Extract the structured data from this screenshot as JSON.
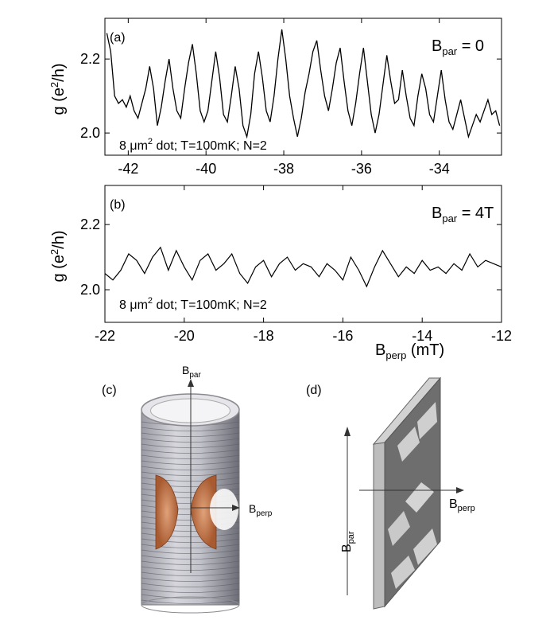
{
  "chart_data": [
    {
      "type": "line",
      "panel_label": "(a)",
      "annotation": "8 μm² dot; T=100mK; N=2",
      "annotation_parts": [
        "8 μm",
        "2",
        " dot; T=100mK; N=2"
      ],
      "condition_parts": [
        "B",
        "par",
        " = 0"
      ],
      "ylabel_parts": [
        "g (e",
        "2",
        "/h)"
      ],
      "xlabel": "",
      "xlim": [
        -42.6,
        -32.4
      ],
      "ylim": [
        1.94,
        2.31
      ],
      "xticks": [
        -42,
        -40,
        -38,
        -36,
        -34
      ],
      "yticks": [
        2.0,
        2.2
      ],
      "xtick_labels": [
        "-42",
        "-40",
        "-38",
        "-36",
        "-34"
      ],
      "ytick_labels": [
        "2.0",
        "2.2"
      ],
      "series": [
        {
          "x": [
            -42.55,
            -42.45,
            -42.35,
            -42.25,
            -42.15,
            -42.05,
            -41.95,
            -41.85,
            -41.75,
            -41.65,
            -41.55,
            -41.45,
            -41.35,
            -41.25,
            -41.15,
            -41.05,
            -40.95,
            -40.85,
            -40.75,
            -40.65,
            -40.55,
            -40.45,
            -40.35,
            -40.25,
            -40.15,
            -40.05,
            -39.95,
            -39.85,
            -39.75,
            -39.65,
            -39.55,
            -39.45,
            -39.35,
            -39.25,
            -39.15,
            -39.05,
            -38.95,
            -38.85,
            -38.75,
            -38.65,
            -38.55,
            -38.45,
            -38.35,
            -38.25,
            -38.15,
            -38.05,
            -37.95,
            -37.85,
            -37.75,
            -37.65,
            -37.55,
            -37.45,
            -37.35,
            -37.25,
            -37.15,
            -37.05,
            -36.95,
            -36.85,
            -36.75,
            -36.65,
            -36.55,
            -36.45,
            -36.35,
            -36.25,
            -36.15,
            -36.05,
            -35.95,
            -35.85,
            -35.75,
            -35.65,
            -35.55,
            -35.45,
            -35.35,
            -35.25,
            -35.15,
            -35.05,
            -34.95,
            -34.85,
            -34.75,
            -34.65,
            -34.55,
            -34.45,
            -34.35,
            -34.25,
            -34.15,
            -34.05,
            -33.95,
            -33.85,
            -33.75,
            -33.65,
            -33.55,
            -33.45,
            -33.35,
            -33.25,
            -33.15,
            -33.05,
            -32.95,
            -32.85,
            -32.75,
            -32.65,
            -32.55,
            -32.45
          ],
          "y": [
            2.27,
            2.22,
            2.1,
            2.08,
            2.09,
            2.07,
            2.1,
            2.06,
            2.04,
            2.08,
            2.12,
            2.18,
            2.12,
            2.02,
            2.07,
            2.14,
            2.2,
            2.12,
            2.06,
            2.04,
            2.12,
            2.19,
            2.24,
            2.16,
            2.06,
            2.03,
            2.06,
            2.14,
            2.22,
            2.15,
            2.05,
            2.03,
            2.1,
            2.18,
            2.12,
            2.02,
            1.99,
            2.05,
            2.16,
            2.22,
            2.15,
            2.06,
            2.03,
            2.1,
            2.2,
            2.28,
            2.2,
            2.1,
            2.04,
            1.99,
            2.04,
            2.11,
            2.16,
            2.22,
            2.25,
            2.17,
            2.1,
            2.06,
            2.12,
            2.19,
            2.23,
            2.14,
            2.06,
            2.02,
            2.08,
            2.16,
            2.23,
            2.14,
            2.05,
            2.0,
            2.05,
            2.13,
            2.21,
            2.14,
            2.08,
            2.09,
            2.17,
            2.1,
            2.04,
            2.02,
            2.1,
            2.16,
            2.12,
            2.05,
            2.03,
            2.1,
            2.17,
            2.09,
            2.03,
            2.01,
            2.05,
            2.09,
            2.04,
            1.99,
            2.02,
            2.05,
            2.03,
            2.06,
            2.09,
            2.05,
            2.06,
            2.02
          ]
        }
      ]
    },
    {
      "type": "line",
      "panel_label": "(b)",
      "annotation": "8 μm² dot; T=100mK; N=2",
      "annotation_parts": [
        "8 μm",
        "2",
        " dot; T=100mK; N=2"
      ],
      "condition_parts": [
        "B",
        "par",
        " = 4T"
      ],
      "ylabel_parts": [
        "g (e",
        "2",
        "/h)"
      ],
      "xlabel_parts": [
        "B",
        "perp",
        " (mT)"
      ],
      "xlim": [
        -22,
        -12
      ],
      "ylim": [
        1.9,
        2.32
      ],
      "xticks": [
        -22,
        -20,
        -18,
        -16,
        -14,
        -12
      ],
      "yticks": [
        2.0,
        2.2
      ],
      "xtick_labels": [
        "-22",
        "-20",
        "-18",
        "-16",
        "-14",
        "-12"
      ],
      "ytick_labels": [
        "2.0",
        "2.2"
      ],
      "series": [
        {
          "x": [
            -22.0,
            -21.8,
            -21.6,
            -21.4,
            -21.2,
            -21.0,
            -20.8,
            -20.6,
            -20.4,
            -20.2,
            -20.0,
            -19.8,
            -19.6,
            -19.4,
            -19.2,
            -19.0,
            -18.8,
            -18.6,
            -18.4,
            -18.2,
            -18.0,
            -17.8,
            -17.6,
            -17.4,
            -17.2,
            -17.0,
            -16.8,
            -16.6,
            -16.4,
            -16.2,
            -16.0,
            -15.8,
            -15.6,
            -15.4,
            -15.2,
            -15.0,
            -14.8,
            -14.6,
            -14.4,
            -14.2,
            -14.0,
            -13.8,
            -13.6,
            -13.4,
            -13.2,
            -13.0,
            -12.8,
            -12.6,
            -12.4,
            -12.2,
            -12.0
          ],
          "y": [
            2.05,
            2.03,
            2.06,
            2.11,
            2.09,
            2.05,
            2.1,
            2.13,
            2.06,
            2.12,
            2.07,
            2.03,
            2.09,
            2.11,
            2.06,
            2.08,
            2.11,
            2.05,
            2.02,
            2.07,
            2.09,
            2.04,
            2.08,
            2.1,
            2.06,
            2.08,
            2.07,
            2.04,
            2.08,
            2.06,
            2.03,
            2.1,
            2.06,
            2.01,
            2.07,
            2.12,
            2.08,
            2.04,
            2.07,
            2.05,
            2.09,
            2.06,
            2.07,
            2.05,
            2.08,
            2.06,
            2.11,
            2.07,
            2.09,
            2.08,
            2.07
          ]
        }
      ]
    }
  ],
  "diagram_c": {
    "panel_label": "(c)",
    "field_up_parts": [
      "B",
      "par"
    ],
    "field_side_parts": [
      "B",
      "perp"
    ]
  },
  "diagram_d": {
    "panel_label": "(d)",
    "field_up_parts": [
      "B",
      "par"
    ],
    "field_side_parts": [
      "B",
      "perp"
    ]
  },
  "colors": {
    "line": "#000000",
    "coil": "#b8643a",
    "cylinder": "#8c8c96",
    "sample": "#6e6e6e"
  }
}
